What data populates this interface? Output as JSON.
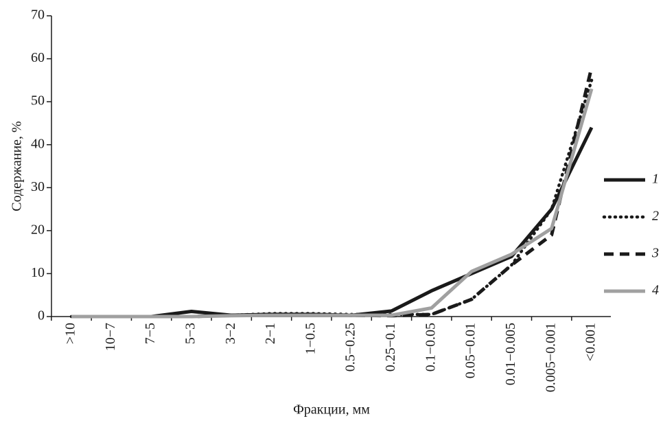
{
  "chart_data": {
    "type": "line",
    "xlabel": "Фракции, мм",
    "ylabel": "Содержание, %",
    "categories": [
      ">10",
      "10−7",
      "7−5",
      "5−3",
      "3−2",
      "2−1",
      "1−0.5",
      "0.5−0.25",
      "0.25−0.1",
      "0.1−0.05",
      "0.05−0.01",
      "0.01−0.005",
      "0.005−0.001",
      "<0.001"
    ],
    "series": [
      {
        "name": "1",
        "color": "#1a1a1a",
        "style": "solid",
        "values": [
          0,
          0,
          0,
          1.2,
          0.3,
          0.5,
          0.5,
          0.3,
          1.3,
          6,
          10,
          14,
          25,
          44
        ]
      },
      {
        "name": "2",
        "color": "#1a1a1a",
        "style": "dotted",
        "values": [
          0,
          0,
          0,
          0,
          0.3,
          0.7,
          0.7,
          0.5,
          0.5,
          0.5,
          4,
          12,
          25,
          55
        ]
      },
      {
        "name": "3",
        "color": "#1a1a1a",
        "style": "dashed",
        "values": [
          0,
          0,
          0,
          0,
          0.3,
          0.5,
          0.5,
          0.3,
          0.2,
          0.5,
          4,
          12,
          19,
          58
        ]
      },
      {
        "name": "4",
        "color": "#a0a0a0",
        "style": "solid",
        "values": [
          0,
          0,
          0,
          0,
          0.2,
          0.3,
          0.3,
          0.3,
          0.3,
          2,
          10.5,
          14.5,
          20.5,
          53
        ]
      }
    ],
    "ylim": [
      0,
      70
    ],
    "yticks": [
      0,
      10,
      20,
      30,
      40,
      50,
      60,
      70
    ],
    "legend": "right"
  }
}
